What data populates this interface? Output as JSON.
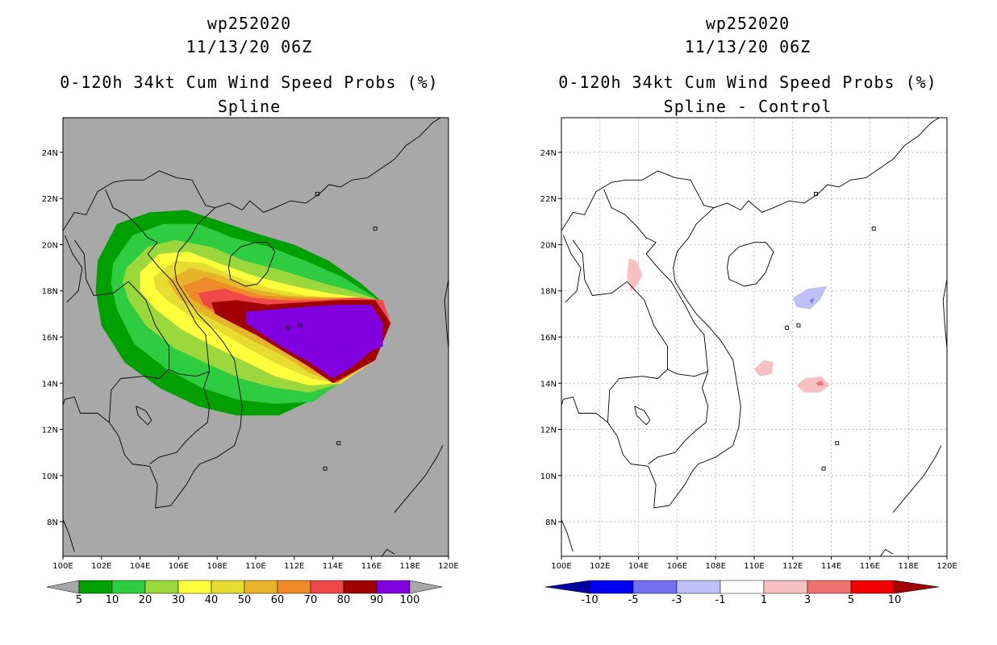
{
  "left": {
    "storm_id": "wp252020",
    "datetime": "11/13/20 06Z",
    "product": "0-120h 34kt Cum Wind Speed Probs (%)",
    "subtitle": "Spline",
    "background_color": "#a8a8a8",
    "colorbar": [
      {
        "label": "5",
        "color": "#00a000"
      },
      {
        "label": "10",
        "color": "#2ecc40"
      },
      {
        "label": "20",
        "color": "#9ad83c"
      },
      {
        "label": "30",
        "color": "#ffff3c"
      },
      {
        "label": "40",
        "color": "#e6dc32"
      },
      {
        "label": "50",
        "color": "#e6b428"
      },
      {
        "label": "60",
        "color": "#ee8a28"
      },
      {
        "label": "70",
        "color": "#f04848"
      },
      {
        "label": "80",
        "color": "#a00000"
      },
      {
        "label": "90",
        "color": "#8000e0"
      },
      {
        "label": "100",
        "color": ""
      }
    ]
  },
  "right": {
    "storm_id": "wp252020",
    "datetime": "11/13/20 06Z",
    "product": "0-120h 34kt Cum Wind Speed Probs (%)",
    "subtitle": "Spline - Control",
    "background_color": "#ffffff",
    "colorbar_colors": [
      "#0000a0",
      "#0000f0",
      "#7070f0",
      "#c0c0f8",
      "#ffffff",
      "#f8c0c0",
      "#f07070",
      "#f00000",
      "#a00000"
    ],
    "colorbar_labels": [
      "-10",
      "-5",
      "-3",
      "-1",
      "1",
      "3",
      "5",
      "10"
    ]
  },
  "axes": {
    "x_ticks": [
      "100E",
      "102E",
      "104E",
      "106E",
      "108E",
      "110E",
      "112E",
      "114E",
      "116E",
      "118E",
      "120E"
    ],
    "y_ticks": [
      "24N",
      "22N",
      "20N",
      "18N",
      "16N",
      "14N",
      "12N",
      "10N",
      "8N"
    ],
    "lon_range": [
      100,
      120
    ],
    "lat_range": [
      6.5,
      25.5
    ]
  }
}
